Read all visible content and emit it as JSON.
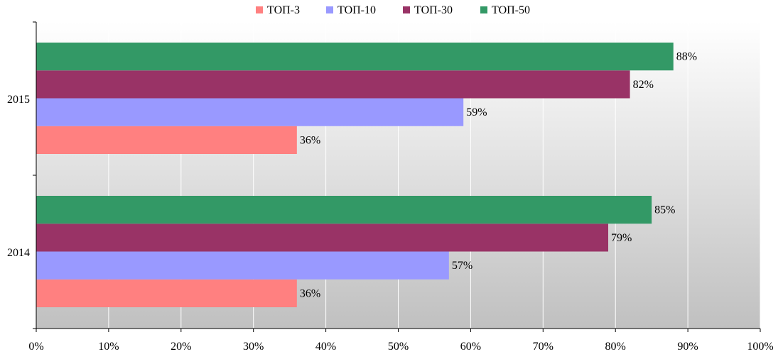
{
  "chart_data": {
    "type": "bar",
    "orientation": "horizontal",
    "categories": [
      "2015",
      "2014"
    ],
    "series": [
      {
        "name": "ТОП-3",
        "color": "#ff8080",
        "values": [
          36,
          36
        ],
        "labels": [
          "36%",
          "36%"
        ]
      },
      {
        "name": "ТОП-10",
        "color": "#9999ff",
        "values": [
          59,
          57
        ],
        "labels": [
          "59%",
          "57%"
        ]
      },
      {
        "name": "ТОП-30",
        "color": "#993366",
        "values": [
          82,
          79
        ],
        "labels": [
          "82%",
          "79%"
        ]
      },
      {
        "name": "ТОП-50",
        "color": "#339966",
        "values": [
          88,
          85
        ],
        "labels": [
          "88%",
          "85%"
        ]
      }
    ],
    "xlim": [
      0,
      100
    ],
    "x_ticks": [
      "0%",
      "10%",
      "20%",
      "30%",
      "40%",
      "50%",
      "60%",
      "70%",
      "80%",
      "90%",
      "100%"
    ],
    "grid": true,
    "legend_position": "top",
    "background": "gradient white to gray"
  }
}
